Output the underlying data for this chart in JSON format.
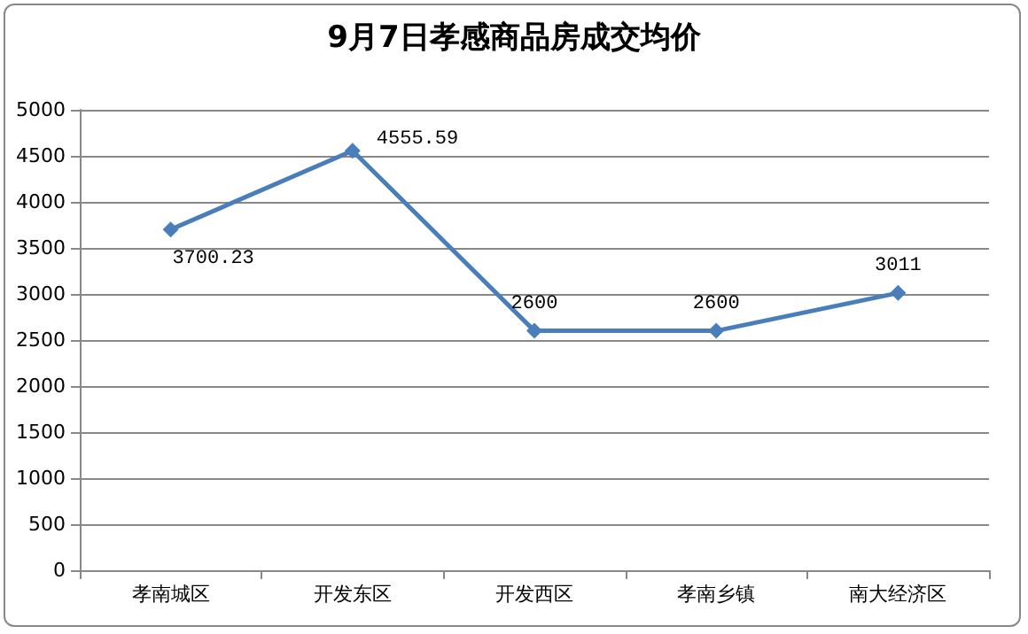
{
  "chart_data": {
    "type": "line",
    "title": "9月7日孝感商品房成交均价",
    "categories": [
      "孝南城区",
      "开发东区",
      "开发西区",
      "孝南乡镇",
      "南大经济区"
    ],
    "values": [
      3700.23,
      4555.59,
      2600,
      2600,
      3011
    ],
    "color": "#4a7ebb",
    "ylim": [
      0,
      5000
    ],
    "yticks": [
      0,
      500,
      1000,
      1500,
      2000,
      2500,
      3000,
      3500,
      4000,
      4500,
      5000
    ],
    "grid": "y",
    "marker": "diamond",
    "line_style": "solid",
    "data_labels": true
  }
}
